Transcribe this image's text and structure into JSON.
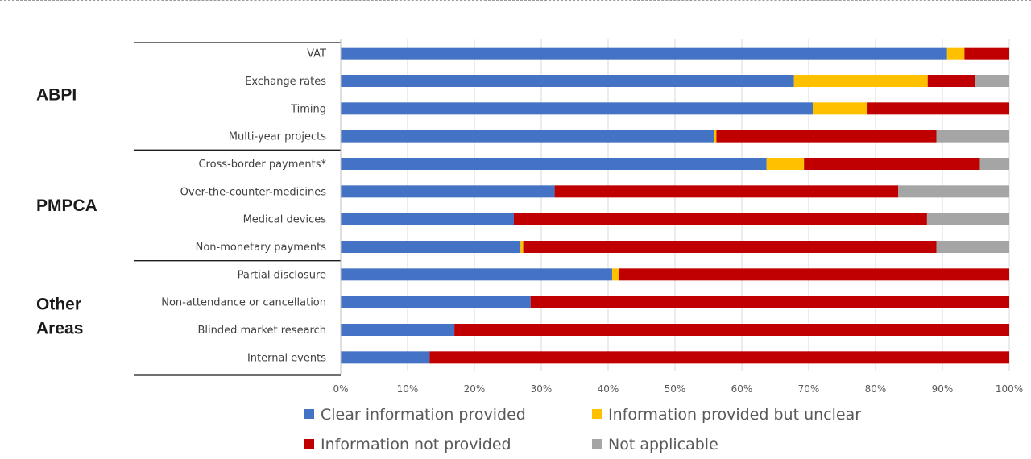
{
  "chart_data": {
    "type": "bar",
    "orientation": "horizontal",
    "stacked": true,
    "x_unit": "percent",
    "xlim": [
      0,
      100
    ],
    "x_ticks": [
      "0%",
      "10%",
      "20%",
      "30%",
      "40%",
      "50%",
      "60%",
      "70%",
      "80%",
      "90%",
      "100%"
    ],
    "grid": "vertical",
    "legend_position": "bottom",
    "groups": [
      {
        "label": "ABPI",
        "categories": [
          "VAT",
          "Exchange rates",
          "Timing",
          "Multi-year projects"
        ]
      },
      {
        "label": "PMPCA",
        "categories": [
          "Cross-border payments*",
          "Over-the-counter-medicines",
          "Medical devices",
          "Non-monetary payments"
        ]
      },
      {
        "label": "Other Areas",
        "categories": [
          "Partial disclosure",
          "Non-attendance or cancellation",
          "Blinded market research",
          "Internal events"
        ]
      }
    ],
    "categories": [
      "VAT",
      "Exchange rates",
      "Timing",
      "Multi-year projects",
      "Cross-border payments*",
      "Over-the-counter-medicines",
      "Medical devices",
      "Non-monetary payments",
      "Partial disclosure",
      "Non-attendance or cancellation",
      "Blinded market research",
      "Internal events"
    ],
    "series": [
      {
        "name": "Clear information provided",
        "color": "#4472C4",
        "values": [
          90.7,
          67.8,
          70.6,
          55.8,
          63.7,
          32.0,
          25.9,
          26.9,
          40.6,
          28.4,
          17.0,
          13.3
        ]
      },
      {
        "name": "Information provided but unclear",
        "color": "#FFC000",
        "values": [
          2.6,
          20.0,
          8.2,
          0.4,
          5.6,
          0.0,
          0.0,
          0.4,
          1.0,
          0.0,
          0.0,
          0.0
        ]
      },
      {
        "name": "Information not provided",
        "color": "#C00000",
        "values": [
          6.7,
          7.1,
          21.2,
          32.9,
          26.3,
          51.4,
          61.8,
          61.8,
          58.4,
          71.6,
          83.0,
          86.7
        ]
      },
      {
        "name": "Not applicable",
        "color": "#A5A5A5",
        "values": [
          0.0,
          5.1,
          0.0,
          10.9,
          4.4,
          16.6,
          12.3,
          10.9,
          0.0,
          0.0,
          0.0,
          0.0
        ]
      }
    ]
  }
}
